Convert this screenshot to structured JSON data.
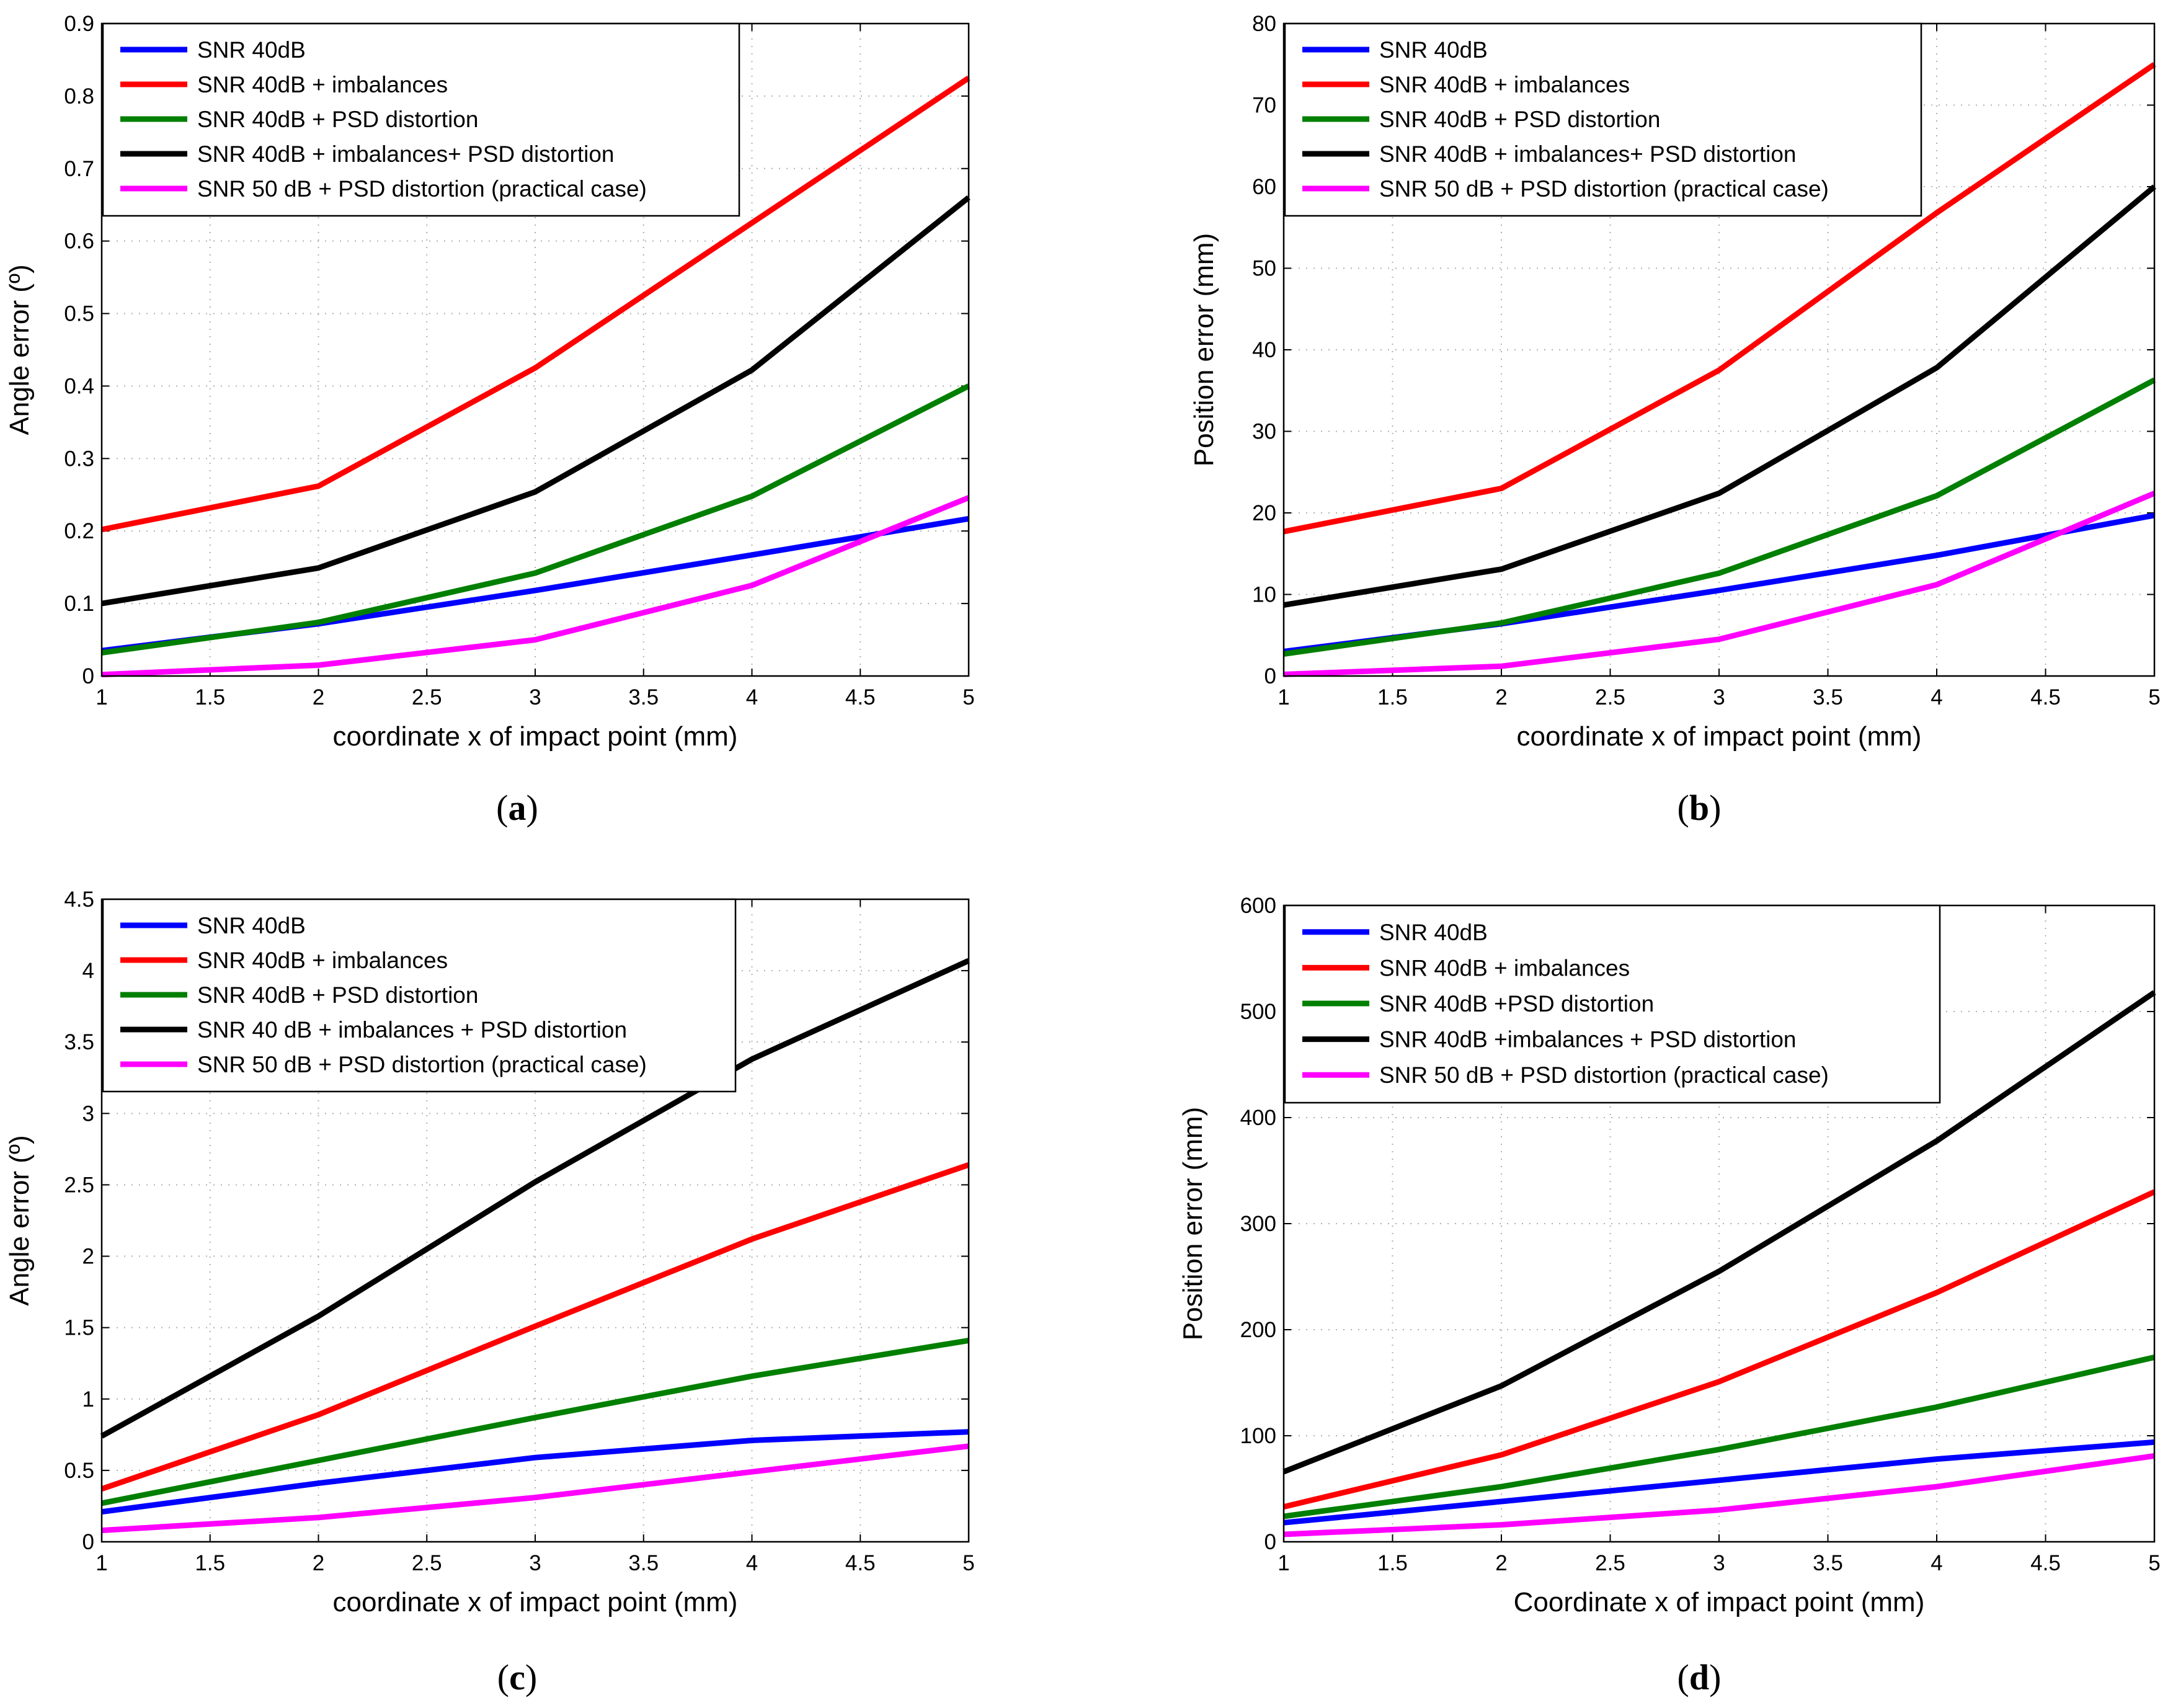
{
  "colors": {
    "blue": "#0000ff",
    "red": "#ff0000",
    "green": "#007f00",
    "black": "#000000",
    "magenta": "#ff00ff"
  },
  "chart_data": [
    {
      "id": "a",
      "type": "line",
      "caption_letter": "a",
      "xlabel": "coordinate x of impact point (mm)",
      "ylabel": "Angle error (º)",
      "xlim": [
        1,
        5
      ],
      "ylim": [
        0,
        0.9
      ],
      "xticks": [
        "1",
        "1.5",
        "2",
        "2.5",
        "3",
        "3.5",
        "4",
        "4.5",
        "5"
      ],
      "yticks": [
        "0",
        "0.1",
        "0.2",
        "0.3",
        "0.4",
        "0.5",
        "0.6",
        "0.7",
        "0.8",
        "0.9"
      ],
      "grid": true,
      "legend_position": "top-left",
      "x": [
        1,
        2,
        3,
        4,
        5
      ],
      "series": [
        {
          "name": "SNR 40dB",
          "color": "#0000ff",
          "values": [
            0.035,
            0.072,
            0.118,
            0.167,
            0.217
          ]
        },
        {
          "name": "SNR 40dB + imbalances",
          "color": "#ff0000",
          "values": [
            0.202,
            0.262,
            0.425,
            0.625,
            0.825
          ]
        },
        {
          "name": "SNR 40dB + PSD distortion",
          "color": "#007f00",
          "values": [
            0.032,
            0.074,
            0.142,
            0.248,
            0.4
          ]
        },
        {
          "name": "SNR 40dB + imbalances+ PSD distortion",
          "color": "#000000",
          "values": [
            0.1,
            0.149,
            0.254,
            0.422,
            0.66
          ]
        },
        {
          "name": "SNR 50 dB + PSD distortion (practical case)",
          "color": "#ff00ff",
          "values": [
            0.002,
            0.015,
            0.05,
            0.125,
            0.246
          ]
        }
      ]
    },
    {
      "id": "b",
      "type": "line",
      "caption_letter": "b",
      "xlabel": "coordinate x of impact point (mm)",
      "ylabel": "Position error (mm)",
      "xlim": [
        1,
        5
      ],
      "ylim": [
        0,
        80
      ],
      "xticks": [
        "1",
        "1.5",
        "2",
        "2.5",
        "3",
        "3.5",
        "4",
        "4.5",
        "5"
      ],
      "yticks": [
        "0",
        "10",
        "20",
        "30",
        "40",
        "50",
        "60",
        "70",
        "80"
      ],
      "grid": true,
      "legend_position": "top-left",
      "x": [
        1,
        2,
        3,
        4,
        5
      ],
      "series": [
        {
          "name": "SNR 40dB",
          "color": "#0000ff",
          "values": [
            3.0,
            6.4,
            10.5,
            14.8,
            19.7
          ]
        },
        {
          "name": "SNR 40dB + imbalances",
          "color": "#ff0000",
          "values": [
            17.7,
            23.0,
            37.5,
            56.8,
            75.0
          ]
        },
        {
          "name": "SNR 40dB + PSD distortion",
          "color": "#007f00",
          "values": [
            2.7,
            6.5,
            12.6,
            22.1,
            36.3
          ]
        },
        {
          "name": "SNR 40dB + imbalances+ PSD distortion",
          "color": "#000000",
          "values": [
            8.7,
            13.1,
            22.4,
            37.8,
            60.0
          ]
        },
        {
          "name": "SNR 50 dB + PSD distortion (practical case)",
          "color": "#ff00ff",
          "values": [
            0.2,
            1.2,
            4.5,
            11.2,
            22.4
          ]
        }
      ]
    },
    {
      "id": "c",
      "type": "line",
      "caption_letter": "c",
      "xlabel": "coordinate x of impact point (mm)",
      "ylabel": "Angle error (º)",
      "xlim": [
        1,
        5
      ],
      "ylim": [
        0,
        4.5
      ],
      "xticks": [
        "1",
        "1.5",
        "2",
        "2.5",
        "3",
        "3.5",
        "4",
        "4.5",
        "5"
      ],
      "yticks": [
        "0",
        "0.5",
        "1",
        "1.5",
        "2",
        "2.5",
        "3",
        "3.5",
        "4",
        "4.5"
      ],
      "grid": true,
      "legend_position": "top-left",
      "x": [
        1,
        2,
        3,
        4,
        5
      ],
      "series": [
        {
          "name": "SNR 40dB",
          "color": "#0000ff",
          "values": [
            0.21,
            0.41,
            0.59,
            0.71,
            0.77
          ]
        },
        {
          "name": "SNR 40dB + imbalances",
          "color": "#ff0000",
          "values": [
            0.37,
            0.89,
            1.51,
            2.12,
            2.64
          ]
        },
        {
          "name": "SNR 40dB + PSD distortion",
          "color": "#007f00",
          "values": [
            0.27,
            0.57,
            0.87,
            1.16,
            1.41
          ]
        },
        {
          "name": "SNR 40 dB + imbalances + PSD distortion",
          "color": "#000000",
          "values": [
            0.74,
            1.58,
            2.52,
            3.38,
            4.07
          ]
        },
        {
          "name": "SNR 50 dB + PSD distortion (practical case)",
          "color": "#ff00ff",
          "values": [
            0.08,
            0.17,
            0.31,
            0.49,
            0.67
          ]
        }
      ]
    },
    {
      "id": "d",
      "type": "line",
      "caption_letter": "d",
      "xlabel": "Coordinate x of impact point (mm)",
      "ylabel": "Position error (mm)",
      "xlim": [
        1,
        5
      ],
      "ylim": [
        0,
        600
      ],
      "xticks": [
        "1",
        "1.5",
        "2",
        "2.5",
        "3",
        "3.5",
        "4",
        "4.5",
        "5"
      ],
      "yticks": [
        "0",
        "100",
        "200",
        "300",
        "400",
        "500",
        "600"
      ],
      "grid": true,
      "legend_position": "top-left",
      "x": [
        1,
        2,
        3,
        4,
        5
      ],
      "series": [
        {
          "name": "SNR 40dB",
          "color": "#0000ff",
          "values": [
            18,
            38,
            58,
            78,
            94
          ]
        },
        {
          "name": "SNR 40dB + imbalances",
          "color": "#ff0000",
          "values": [
            33,
            82,
            151,
            235,
            330
          ]
        },
        {
          "name": "SNR 40dB +PSD distortion",
          "color": "#007f00",
          "values": [
            24,
            52,
            87,
            127,
            174
          ]
        },
        {
          "name": "SNR 40dB +imbalances + PSD distortion",
          "color": "#000000",
          "values": [
            66,
            147,
            255,
            378,
            518
          ]
        },
        {
          "name": " SNR 50 dB + PSD distortion (practical case)",
          "color": "#ff00ff",
          "values": [
            7,
            16,
            30,
            52,
            81
          ]
        }
      ]
    }
  ]
}
